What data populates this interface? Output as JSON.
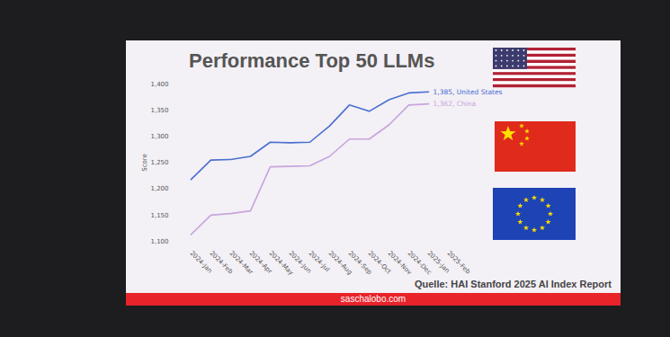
{
  "chart_data": {
    "type": "line",
    "title": "Performance Top 50 LLMs",
    "y_label": "Score",
    "x": [
      "2024-Jan",
      "2024-Feb",
      "2024-Mar",
      "2024-Apr",
      "2024-May",
      "2024-Jun",
      "2024-Jul",
      "2024-Aug",
      "2024-Sep",
      "2024-Oct",
      "2024-Nov",
      "2024-Dec",
      "2025-Jan",
      "2025-Feb"
    ],
    "series": [
      {
        "name": "United States",
        "color": "#4a6fd0",
        "values": [
          1218,
          1255,
          1256,
          1262,
          1289,
          1288,
          1289,
          1320,
          1360,
          1348,
          1370,
          1383,
          1385,
          null
        ]
      },
      {
        "name": "China",
        "color": "#c8a4dc",
        "values": [
          1113,
          1150,
          1153,
          1158,
          1242,
          1243,
          1244,
          1262,
          1295,
          1295,
          1322,
          1360,
          1362,
          null
        ]
      }
    ],
    "ylim": [
      1100,
      1400
    ],
    "yticks": [
      {
        "value": 1100,
        "label": "1,100"
      },
      {
        "value": 1150,
        "label": "1,150"
      },
      {
        "value": 1200,
        "label": "1,200"
      },
      {
        "value": 1250,
        "label": "1,250"
      },
      {
        "value": 1300,
        "label": "1,300"
      },
      {
        "value": 1350,
        "label": "1,350"
      },
      {
        "value": 1400,
        "label": "1,400"
      }
    ],
    "grid": false,
    "annotations": [
      {
        "x": "2025-Jan",
        "y": 1385,
        "text": "1,385, United States",
        "series": "United States"
      },
      {
        "x": "2025-Jan",
        "y": 1362,
        "text": "1,362, China",
        "series": "China"
      }
    ],
    "source": "Quelle: HAI Stanford 2025 AI Index Report",
    "footer": "saschalobo.com"
  }
}
